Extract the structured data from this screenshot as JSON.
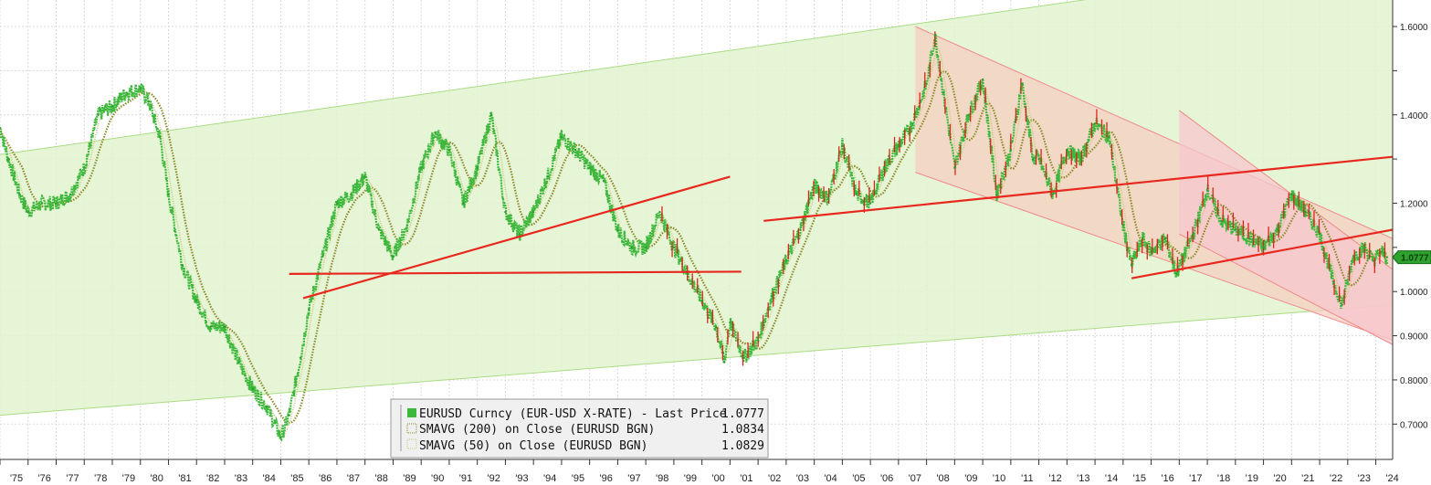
{
  "chart_data": {
    "type": "line",
    "y_axis": {
      "position": "right",
      "ylim": [
        0.62,
        1.66
      ],
      "ticks": [
        0.7,
        0.8,
        0.9,
        1.0,
        1.1,
        1.2,
        1.3,
        1.4,
        1.5,
        1.6
      ],
      "tick_labels": [
        "0.7000",
        "0.8000",
        "0.9000",
        "1.0000",
        "",
        "1.2000",
        "",
        "1.4000",
        "",
        "1.6000"
      ]
    },
    "x_axis": {
      "xlim": [
        1975.0,
        2024.6
      ],
      "ticks": [
        1975,
        1976,
        1977,
        1978,
        1979,
        1980,
        1981,
        1982,
        1983,
        1984,
        1985,
        1986,
        1987,
        1988,
        1989,
        1990,
        1991,
        1992,
        1993,
        1994,
        1995,
        1996,
        1997,
        1998,
        1999,
        2000,
        2001,
        2002,
        2003,
        2004,
        2005,
        2006,
        2007,
        2008,
        2009,
        2010,
        2011,
        2012,
        2013,
        2014,
        2015,
        2016,
        2017,
        2018,
        2019,
        2020,
        2021,
        2022,
        2023,
        2024
      ],
      "tick_labels": [
        "'75",
        "'76",
        "'77",
        "'78",
        "'79",
        "'80",
        "'81",
        "'82",
        "'83",
        "'84",
        "'85",
        "'86",
        "'87",
        "'88",
        "'89",
        "'90",
        "'91",
        "'92",
        "'93",
        "'94",
        "'95",
        "'96",
        "'97",
        "'98",
        "'99",
        "'00",
        "'01",
        "'02",
        "'03",
        "'04",
        "'05",
        "'06",
        "'07",
        "'08",
        "'09",
        "'10",
        "'11",
        "'12",
        "'13",
        "'14",
        "'15",
        "'16",
        "'17",
        "'18",
        "'19",
        "'20",
        "'21",
        "'22",
        "'23",
        "'24"
      ]
    },
    "grid": true,
    "series": [
      {
        "name": "EURUSD Curncy (EUR-USD X-RATE) - Last Price",
        "last": "1.0777",
        "color": "#3db83d",
        "style": "price",
        "points": [
          [
            1975.0,
            1.37
          ],
          [
            1975.3,
            1.3
          ],
          [
            1975.7,
            1.22
          ],
          [
            1976.0,
            1.18
          ],
          [
            1976.5,
            1.2
          ],
          [
            1977.0,
            1.2
          ],
          [
            1977.5,
            1.22
          ],
          [
            1978.0,
            1.28
          ],
          [
            1978.5,
            1.4
          ],
          [
            1979.0,
            1.42
          ],
          [
            1979.5,
            1.45
          ],
          [
            1980.0,
            1.46
          ],
          [
            1980.3,
            1.43
          ],
          [
            1980.7,
            1.35
          ],
          [
            1981.0,
            1.22
          ],
          [
            1981.5,
            1.06
          ],
          [
            1982.0,
            0.98
          ],
          [
            1982.5,
            0.92
          ],
          [
            1983.0,
            0.92
          ],
          [
            1983.5,
            0.84
          ],
          [
            1984.0,
            0.78
          ],
          [
            1984.5,
            0.74
          ],
          [
            1985.0,
            0.67
          ],
          [
            1985.3,
            0.72
          ],
          [
            1985.7,
            0.85
          ],
          [
            1986.0,
            0.96
          ],
          [
            1986.5,
            1.08
          ],
          [
            1987.0,
            1.2
          ],
          [
            1987.5,
            1.22
          ],
          [
            1988.0,
            1.26
          ],
          [
            1988.5,
            1.14
          ],
          [
            1989.0,
            1.08
          ],
          [
            1989.5,
            1.15
          ],
          [
            1990.0,
            1.28
          ],
          [
            1990.5,
            1.36
          ],
          [
            1991.0,
            1.32
          ],
          [
            1991.5,
            1.2
          ],
          [
            1992.0,
            1.28
          ],
          [
            1992.5,
            1.4
          ],
          [
            1993.0,
            1.18
          ],
          [
            1993.5,
            1.13
          ],
          [
            1994.0,
            1.18
          ],
          [
            1994.5,
            1.26
          ],
          [
            1995.0,
            1.35
          ],
          [
            1995.5,
            1.32
          ],
          [
            1996.0,
            1.28
          ],
          [
            1996.5,
            1.25
          ],
          [
            1997.0,
            1.14
          ],
          [
            1997.5,
            1.1
          ],
          [
            1998.0,
            1.1
          ],
          [
            1998.5,
            1.18
          ],
          [
            1999.0,
            1.1
          ],
          [
            1999.5,
            1.04
          ],
          [
            2000.0,
            0.98
          ],
          [
            2000.5,
            0.92
          ],
          [
            2000.8,
            0.84
          ],
          [
            2001.0,
            0.93
          ],
          [
            2001.5,
            0.85
          ],
          [
            2002.0,
            0.89
          ],
          [
            2002.5,
            0.99
          ],
          [
            2003.0,
            1.07
          ],
          [
            2003.5,
            1.14
          ],
          [
            2004.0,
            1.24
          ],
          [
            2004.5,
            1.21
          ],
          [
            2005.0,
            1.33
          ],
          [
            2005.5,
            1.22
          ],
          [
            2006.0,
            1.2
          ],
          [
            2006.5,
            1.28
          ],
          [
            2007.0,
            1.33
          ],
          [
            2007.5,
            1.38
          ],
          [
            2008.0,
            1.47
          ],
          [
            2008.3,
            1.58
          ],
          [
            2008.6,
            1.45
          ],
          [
            2009.0,
            1.28
          ],
          [
            2009.5,
            1.4
          ],
          [
            2010.0,
            1.48
          ],
          [
            2010.5,
            1.22
          ],
          [
            2011.0,
            1.32
          ],
          [
            2011.4,
            1.47
          ],
          [
            2011.8,
            1.3
          ],
          [
            2012.0,
            1.3
          ],
          [
            2012.5,
            1.22
          ],
          [
            2013.0,
            1.32
          ],
          [
            2013.5,
            1.3
          ],
          [
            2014.0,
            1.38
          ],
          [
            2014.5,
            1.35
          ],
          [
            2015.0,
            1.15
          ],
          [
            2015.3,
            1.06
          ],
          [
            2015.7,
            1.12
          ],
          [
            2016.0,
            1.09
          ],
          [
            2016.5,
            1.12
          ],
          [
            2016.9,
            1.04
          ],
          [
            2017.5,
            1.13
          ],
          [
            2018.0,
            1.23
          ],
          [
            2018.5,
            1.16
          ],
          [
            2019.0,
            1.14
          ],
          [
            2019.5,
            1.12
          ],
          [
            2020.0,
            1.1
          ],
          [
            2020.5,
            1.14
          ],
          [
            2021.0,
            1.22
          ],
          [
            2021.5,
            1.18
          ],
          [
            2022.0,
            1.13
          ],
          [
            2022.5,
            1.02
          ],
          [
            2022.8,
            0.97
          ],
          [
            2023.2,
            1.08
          ],
          [
            2023.6,
            1.1
          ],
          [
            2023.9,
            1.07
          ],
          [
            2024.2,
            1.09
          ],
          [
            2024.4,
            1.0777
          ]
        ]
      },
      {
        "name": "SMAVG (200) on Close (EURUSD BGN)",
        "last": "1.0834",
        "color": "#8a8a2a",
        "style": "dotted"
      },
      {
        "name": "SMAVG (50) on Close (EURUSD BGN)",
        "last": "1.0829",
        "color": "#c8c87a",
        "style": "dotted"
      }
    ],
    "channels": [
      {
        "color": "#e2f3cf",
        "upper": [
          [
            1975.0,
            1.31
          ],
          [
            2024.6,
            1.76
          ]
        ],
        "lower": [
          [
            1975.0,
            0.72
          ],
          [
            2024.6,
            0.97
          ]
        ]
      },
      {
        "color": "#f5cfc0",
        "upper": [
          [
            2007.6,
            1.6
          ],
          [
            2024.6,
            1.12
          ]
        ],
        "lower": [
          [
            2007.6,
            1.27
          ],
          [
            2024.6,
            0.89
          ]
        ]
      },
      {
        "color": "#f7c6cc",
        "upper": [
          [
            2017.0,
            1.41
          ],
          [
            2024.6,
            1.05
          ]
        ],
        "lower": [
          [
            2017.0,
            1.13
          ],
          [
            2024.6,
            0.88
          ]
        ]
      }
    ],
    "trendlines": [
      {
        "points": [
          [
            1985.3,
            1.04
          ],
          [
            2001.4,
            1.045
          ]
        ],
        "color": "#e8281e"
      },
      {
        "points": [
          [
            1985.8,
            0.985
          ],
          [
            2001.0,
            1.26
          ]
        ],
        "color": "#e8281e"
      },
      {
        "points": [
          [
            2002.2,
            1.16
          ],
          [
            2024.6,
            1.305
          ]
        ],
        "color": "#e8281e"
      },
      {
        "points": [
          [
            2015.3,
            1.03
          ],
          [
            2024.6,
            1.14
          ]
        ],
        "color": "#e8281e"
      }
    ],
    "legend": {
      "placement": "bottom-center"
    },
    "last_value_label": "1.0777"
  }
}
